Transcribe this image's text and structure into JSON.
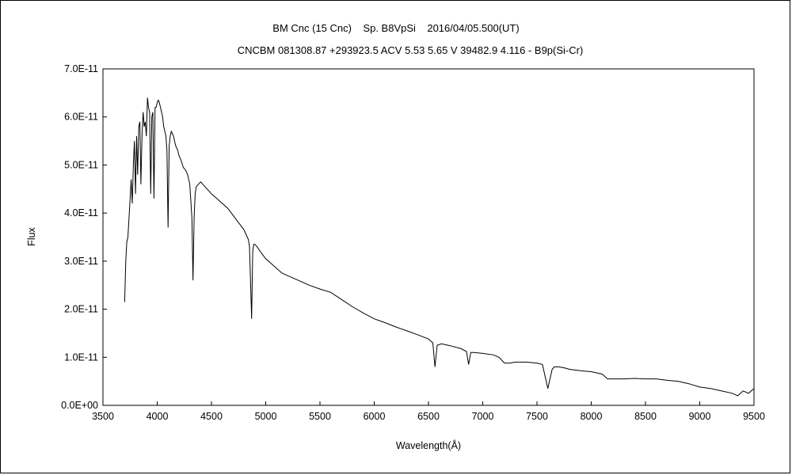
{
  "chart_data": {
    "type": "line",
    "title": "BM Cnc (15 Cnc)    Sp. B8VpSi    2016/04/05.500(UT)",
    "subtitle": "CNCBM 081308.87 +293923.5 ACV 5.53 5.65 V 39482.9 4.116 - B9p(Si-Cr)",
    "xlabel": "Wavelength(Å)",
    "ylabel": "Flux",
    "xlim": [
      3500,
      9500
    ],
    "ylim": [
      0,
      7e-11
    ],
    "xticks": [
      "3500",
      "4000",
      "4500",
      "5000",
      "5500",
      "6000",
      "6500",
      "7000",
      "7500",
      "8000",
      "8500",
      "9000",
      "9500"
    ],
    "yticks": [
      "0.0E+00",
      "1.0E-11",
      "2.0E-11",
      "3.0E-11",
      "4.0E-11",
      "5.0E-11",
      "6.0E-11",
      "7.0E-11"
    ],
    "grid": false,
    "series": [
      {
        "x": [
          3700,
          3710,
          3720,
          3730,
          3740,
          3750,
          3760,
          3770,
          3780,
          3790,
          3800,
          3810,
          3820,
          3830,
          3840,
          3850,
          3860,
          3870,
          3880,
          3890,
          3900,
          3910,
          3920,
          3930,
          3940,
          3950,
          3960,
          3970,
          3980,
          3990,
          4000,
          4010,
          4020,
          4030,
          4040,
          4050,
          4060,
          4070,
          4080,
          4090,
          4100,
          4110,
          4120,
          4130,
          4140,
          4150,
          4160,
          4170,
          4180,
          4190,
          4200,
          4220,
          4240,
          4260,
          4280,
          4300,
          4320,
          4330,
          4340,
          4350,
          4360,
          4380,
          4400,
          4420,
          4440,
          4460,
          4480,
          4500,
          4550,
          4600,
          4650,
          4700,
          4750,
          4800,
          4820,
          4840,
          4850,
          4860,
          4870,
          4880,
          4890,
          4900,
          4920,
          4950,
          5000,
          5050,
          5100,
          5150,
          5200,
          5300,
          5400,
          5500,
          5600,
          5700,
          5800,
          5900,
          6000,
          6100,
          6200,
          6300,
          6400,
          6500,
          6540,
          6560,
          6580,
          6620,
          6700,
          6800,
          6850,
          6870,
          6890,
          6920,
          7000,
          7100,
          7150,
          7200,
          7250,
          7300,
          7400,
          7500,
          7550,
          7580,
          7600,
          7620,
          7640,
          7660,
          7700,
          7750,
          7800,
          7900,
          8000,
          8100,
          8150,
          8200,
          8300,
          8400,
          8500,
          8600,
          8700,
          8800,
          8900,
          9000,
          9100,
          9200,
          9300,
          9350,
          9400,
          9450,
          9500
        ],
        "values": [
          2.15e-11,
          3e-11,
          3.4e-11,
          3.5e-11,
          3.9e-11,
          4.3e-11,
          4.7e-11,
          4.2e-11,
          5e-11,
          5.5e-11,
          4.4e-11,
          5.6e-11,
          4.8e-11,
          5.8e-11,
          5.9e-11,
          4.6e-11,
          5.6e-11,
          6.1e-11,
          5.8e-11,
          5.9e-11,
          5.6e-11,
          6.4e-11,
          6.2e-11,
          6.1e-11,
          4.4e-11,
          6e-11,
          6.1e-11,
          4.3e-11,
          6.2e-11,
          6.2e-11,
          6.3e-11,
          6.35e-11,
          6.3e-11,
          6.2e-11,
          6.1e-11,
          6e-11,
          5.8e-11,
          5.7e-11,
          5.6e-11,
          5.3e-11,
          3.7e-11,
          5.4e-11,
          5.6e-11,
          5.7e-11,
          5.65e-11,
          5.6e-11,
          5.5e-11,
          5.4e-11,
          5.35e-11,
          5.3e-11,
          5.2e-11,
          5.1e-11,
          4.95e-11,
          4.9e-11,
          4.8e-11,
          4.6e-11,
          3.9e-11,
          2.6e-11,
          3.9e-11,
          4.4e-11,
          4.55e-11,
          4.6e-11,
          4.65e-11,
          4.6e-11,
          4.55e-11,
          4.5e-11,
          4.45e-11,
          4.4e-11,
          4.3e-11,
          4.2e-11,
          4.1e-11,
          3.95e-11,
          3.8e-11,
          3.65e-11,
          3.55e-11,
          3.45e-11,
          3.3e-11,
          2.6e-11,
          1.8e-11,
          3.2e-11,
          3.35e-11,
          3.35e-11,
          3.3e-11,
          3.2e-11,
          3.05e-11,
          2.95e-11,
          2.85e-11,
          2.75e-11,
          2.7e-11,
          2.6e-11,
          2.5e-11,
          2.42e-11,
          2.35e-11,
          2.2e-11,
          2.05e-11,
          1.92e-11,
          1.8e-11,
          1.72e-11,
          1.63e-11,
          1.55e-11,
          1.47e-11,
          1.38e-11,
          1.3e-11,
          8e-12,
          1.25e-11,
          1.28e-11,
          1.24e-11,
          1.18e-11,
          1.12e-11,
          8.5e-12,
          1.1e-11,
          1.1e-11,
          1.08e-11,
          1.05e-11,
          1e-11,
          8.8e-12,
          8.8e-12,
          9e-12,
          9e-12,
          8.8e-12,
          8.5e-12,
          5.5e-12,
          3.5e-12,
          5.5e-12,
          7.5e-12,
          8e-12,
          8e-12,
          7.8e-12,
          7.5e-12,
          7.2e-12,
          7e-12,
          6.5e-12,
          5.5e-12,
          5.5e-12,
          5.5e-12,
          5.6e-12,
          5.5e-12,
          5.5e-12,
          5.2e-12,
          5e-12,
          4.5e-12,
          3.8e-12,
          3.5e-12,
          3e-12,
          2.5e-12,
          2e-12,
          3e-12,
          2.5e-12,
          3.5e-12
        ]
      }
    ]
  }
}
